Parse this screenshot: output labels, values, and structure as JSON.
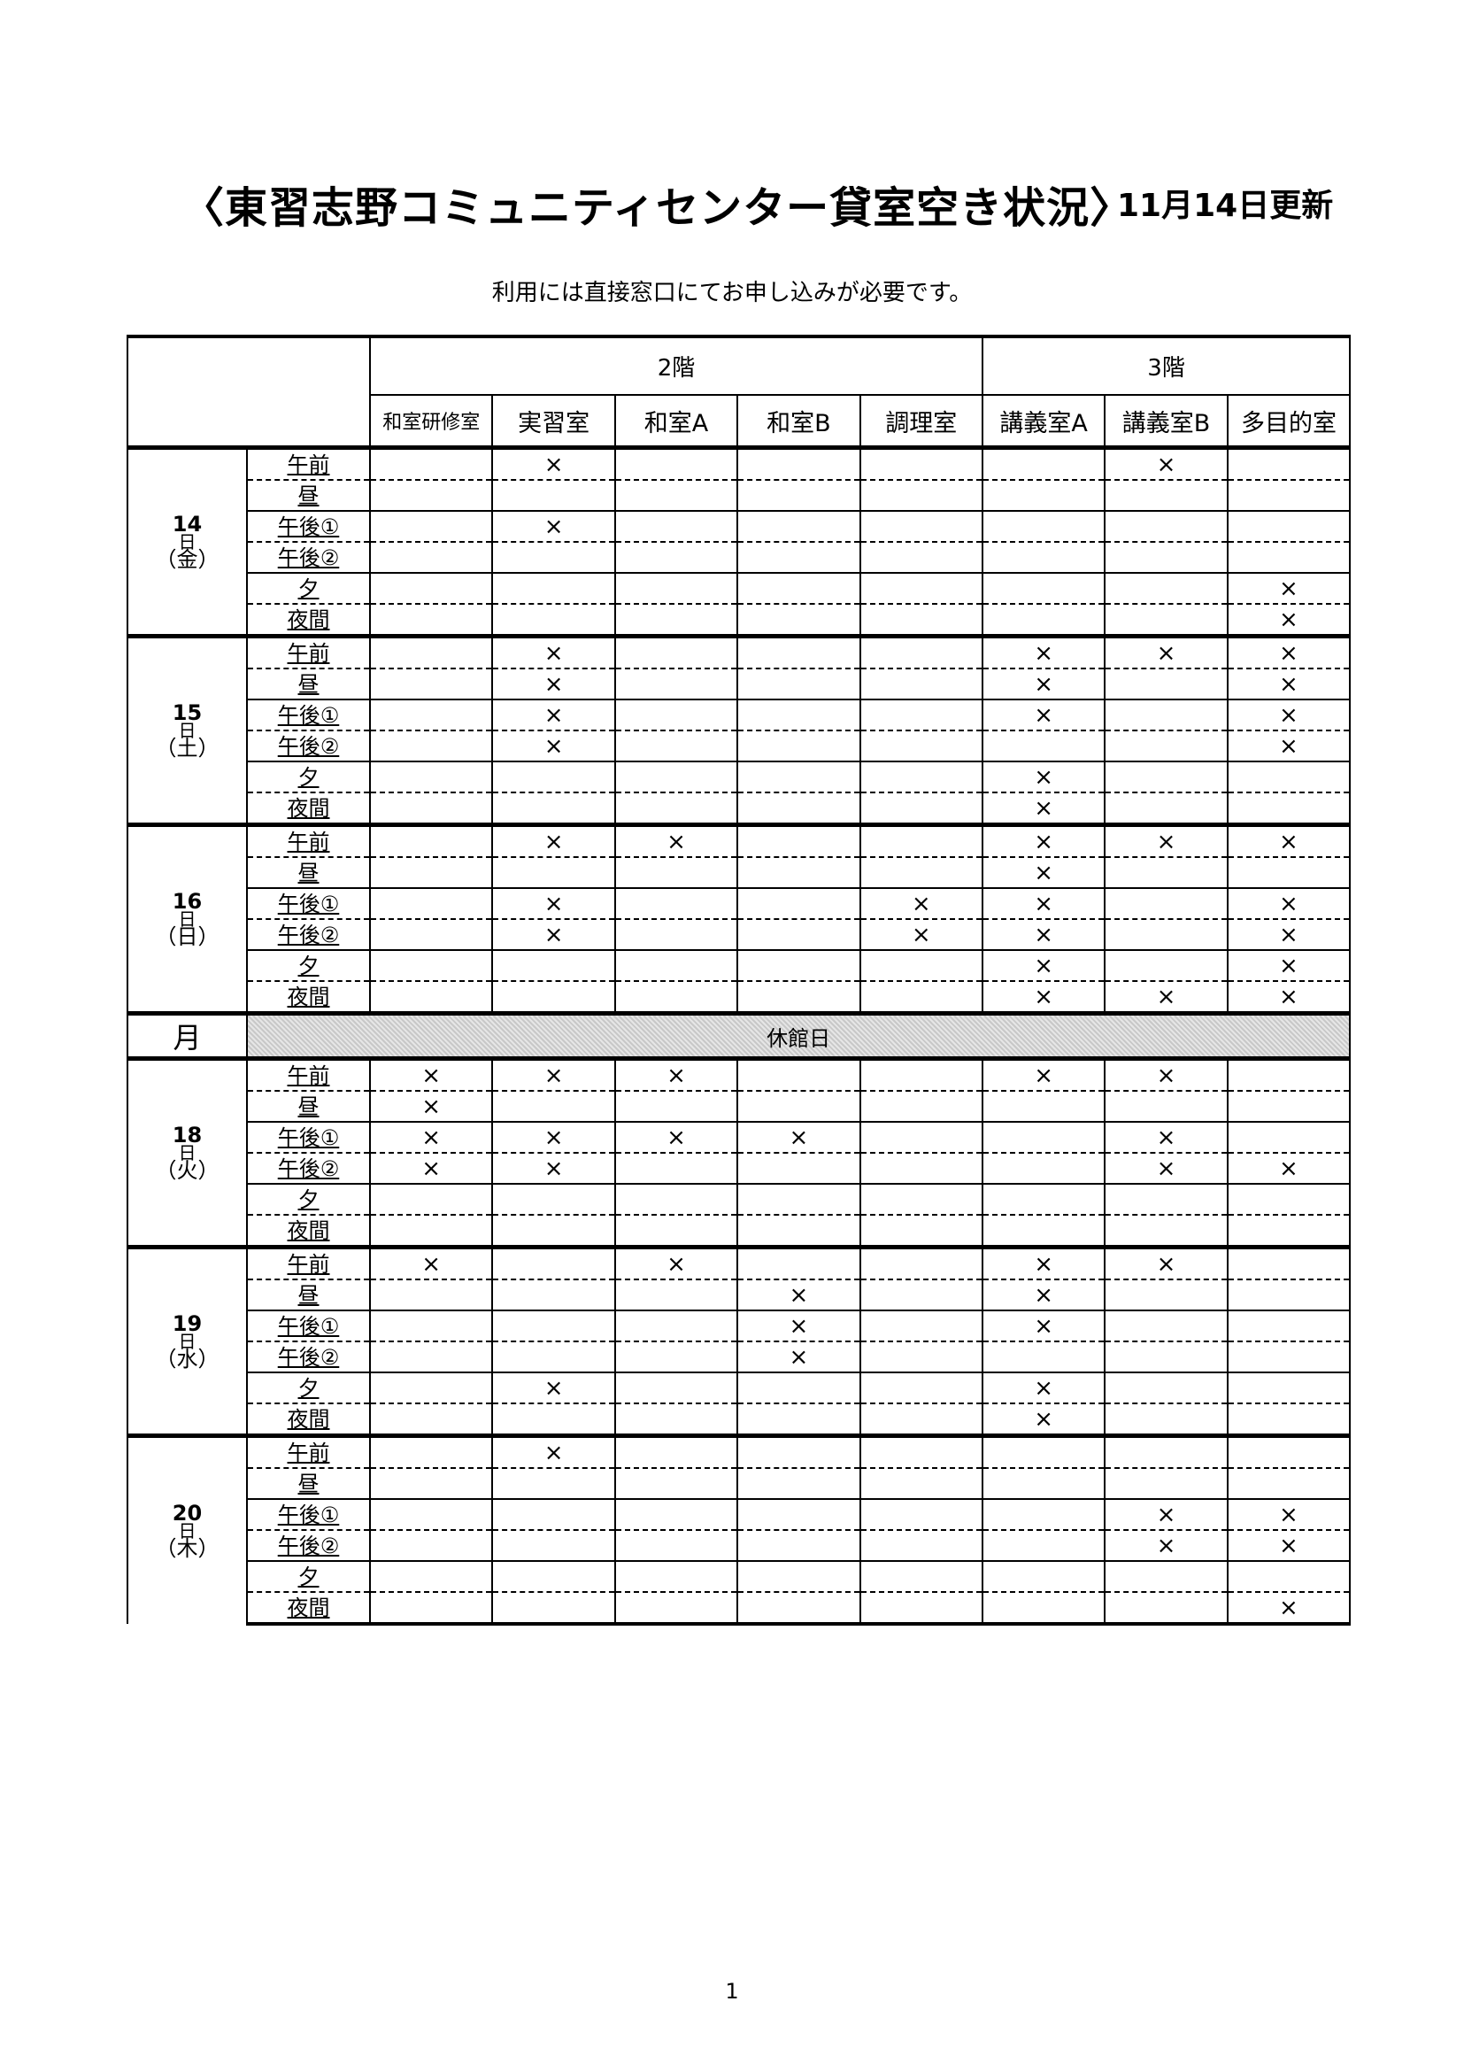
{
  "title": "〈東習志野コミュニティセンター貸室空き状況〉",
  "updated": "11月14日更新",
  "notice": "利用には直接窓口にてお申し込みが必要です。",
  "page_number": "1",
  "mark_symbol": "×",
  "floors": [
    {
      "label": "2階",
      "rooms": [
        "和室研修室",
        "実習室",
        "和室A",
        "和室B",
        "調理室"
      ]
    },
    {
      "label": "3階",
      "rooms": [
        "講義室A",
        "講義室B",
        "多目的室"
      ]
    }
  ],
  "slots": [
    "午前",
    "昼",
    "午後①",
    "午後②",
    "夕",
    "夜間"
  ],
  "day_suffix": "日",
  "days": [
    {
      "date": "14",
      "weekday": "（金）",
      "marks": [
        [
          0,
          1,
          0,
          0,
          0,
          0,
          1,
          0
        ],
        [
          0,
          0,
          0,
          0,
          0,
          0,
          0,
          0
        ],
        [
          0,
          1,
          0,
          0,
          0,
          0,
          0,
          0
        ],
        [
          0,
          0,
          0,
          0,
          0,
          0,
          0,
          0
        ],
        [
          0,
          0,
          0,
          0,
          0,
          0,
          0,
          1
        ],
        [
          0,
          0,
          0,
          0,
          0,
          0,
          0,
          1
        ]
      ]
    },
    {
      "date": "15",
      "weekday": "（土）",
      "marks": [
        [
          0,
          1,
          0,
          0,
          0,
          1,
          1,
          1
        ],
        [
          0,
          1,
          0,
          0,
          0,
          1,
          0,
          1
        ],
        [
          0,
          1,
          0,
          0,
          0,
          1,
          0,
          1
        ],
        [
          0,
          1,
          0,
          0,
          0,
          0,
          0,
          1
        ],
        [
          0,
          0,
          0,
          0,
          0,
          1,
          0,
          0
        ],
        [
          0,
          0,
          0,
          0,
          0,
          1,
          0,
          0
        ]
      ]
    },
    {
      "date": "16",
      "weekday": "（日）",
      "marks": [
        [
          0,
          1,
          1,
          0,
          0,
          1,
          1,
          1
        ],
        [
          0,
          0,
          0,
          0,
          0,
          1,
          0,
          0
        ],
        [
          0,
          1,
          0,
          0,
          1,
          1,
          0,
          1
        ],
        [
          0,
          1,
          0,
          0,
          1,
          1,
          0,
          1
        ],
        [
          0,
          0,
          0,
          0,
          0,
          1,
          0,
          1
        ],
        [
          0,
          0,
          0,
          0,
          0,
          1,
          1,
          1
        ]
      ]
    },
    {
      "closed": true,
      "label": "月",
      "note": "休館日"
    },
    {
      "date": "18",
      "weekday": "（火）",
      "marks": [
        [
          1,
          1,
          1,
          0,
          0,
          1,
          1,
          0
        ],
        [
          1,
          0,
          0,
          0,
          0,
          0,
          0,
          0
        ],
        [
          1,
          1,
          1,
          1,
          0,
          0,
          1,
          0
        ],
        [
          1,
          1,
          0,
          0,
          0,
          0,
          1,
          1
        ],
        [
          0,
          0,
          0,
          0,
          0,
          0,
          0,
          0
        ],
        [
          0,
          0,
          0,
          0,
          0,
          0,
          0,
          0
        ]
      ]
    },
    {
      "date": "19",
      "weekday": "（水）",
      "marks": [
        [
          1,
          0,
          1,
          0,
          0,
          1,
          1,
          0
        ],
        [
          0,
          0,
          0,
          1,
          0,
          1,
          0,
          0
        ],
        [
          0,
          0,
          0,
          1,
          0,
          1,
          0,
          0
        ],
        [
          0,
          0,
          0,
          1,
          0,
          0,
          0,
          0
        ],
        [
          0,
          1,
          0,
          0,
          0,
          1,
          0,
          0
        ],
        [
          0,
          0,
          0,
          0,
          0,
          1,
          0,
          0
        ]
      ]
    },
    {
      "date": "20",
      "weekday": "（木）",
      "marks": [
        [
          0,
          1,
          0,
          0,
          0,
          0,
          0,
          0
        ],
        [
          0,
          0,
          0,
          0,
          0,
          0,
          0,
          0
        ],
        [
          0,
          0,
          0,
          0,
          0,
          0,
          1,
          1
        ],
        [
          0,
          0,
          0,
          0,
          0,
          0,
          1,
          1
        ],
        [
          0,
          0,
          0,
          0,
          0,
          0,
          0,
          0
        ],
        [
          0,
          0,
          0,
          0,
          0,
          0,
          0,
          1
        ]
      ]
    }
  ]
}
